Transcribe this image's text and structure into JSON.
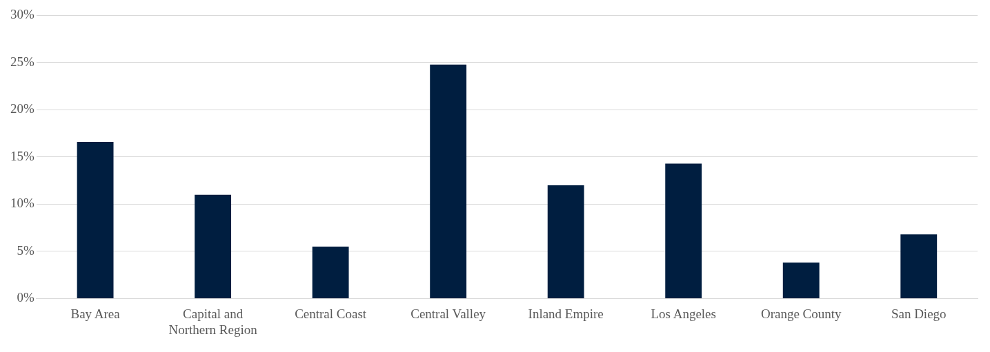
{
  "chart_data": {
    "type": "bar",
    "categories": [
      "Bay Area",
      "Capital and Northern Region",
      "Central Coast",
      "Central Valley",
      "Inland Empire",
      "Los Angeles",
      "Orange County",
      "San Diego"
    ],
    "values": [
      16.6,
      11.0,
      5.5,
      24.8,
      12.0,
      14.3,
      3.8,
      6.8
    ],
    "color": "#001e40",
    "ylim": [
      0,
      30
    ],
    "yticks": [
      {
        "value": 0,
        "label": "0%"
      },
      {
        "value": 5,
        "label": "5%"
      },
      {
        "value": 10,
        "label": "10%"
      },
      {
        "value": 15,
        "label": "15%"
      },
      {
        "value": 20,
        "label": "20%"
      },
      {
        "value": 25,
        "label": "25%"
      },
      {
        "value": 30,
        "label": "30%"
      }
    ],
    "grid": "y",
    "legend": false
  }
}
